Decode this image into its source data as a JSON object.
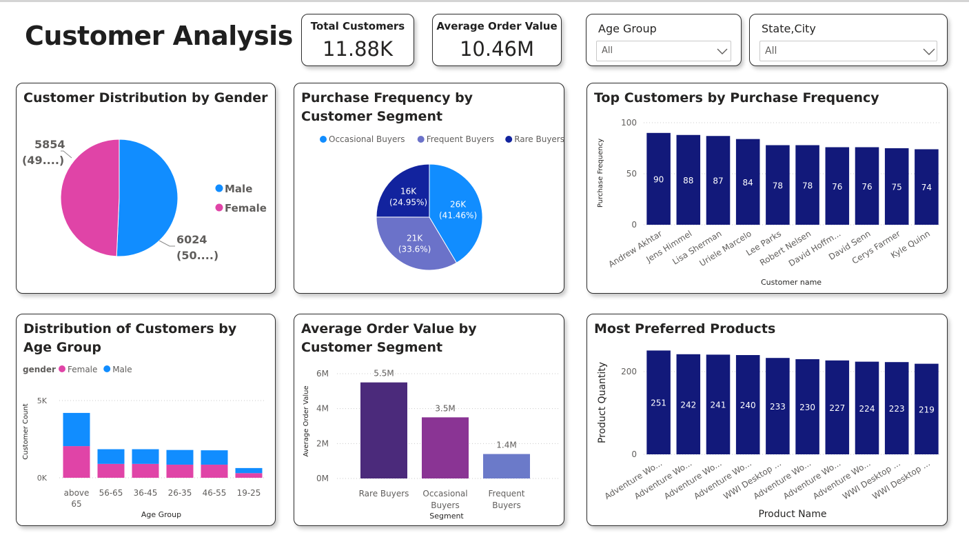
{
  "page": {
    "title": "Customer Analysis"
  },
  "kpis": [
    {
      "label": "Total Customers",
      "value": "11.88K"
    },
    {
      "label": "Average Order Value",
      "value": "10.46M"
    }
  ],
  "slicers": [
    {
      "label": "Age Group",
      "value": "All"
    },
    {
      "label": "State,City",
      "value": "All"
    }
  ],
  "colors": {
    "male": "#118DFF",
    "female": "#E044A7",
    "navy": "#12197A",
    "occasional": "#118DFF",
    "frequent": "#6B72C9",
    "rare": "#12239E",
    "aov_rare": "#4B2A7B",
    "aov_occ": "#8A3494",
    "aov_freq": "#6B7AC9"
  },
  "chart_data": [
    {
      "id": "gender",
      "type": "pie",
      "title": "Customer Distribution by Gender",
      "legend": [
        "Male",
        "Female"
      ],
      "slices": [
        {
          "name": "Male",
          "value": 6024,
          "label": "6024",
          "pct_label": "(50....)"
        },
        {
          "name": "Female",
          "value": 5854,
          "label": "5854",
          "pct_label": "(49....)"
        }
      ]
    },
    {
      "id": "segment_freq",
      "type": "pie",
      "title": "Purchase Frequency by Customer Segment",
      "legend": [
        "Occasional Buyers",
        "Frequent Buyers",
        "Rare Buyers"
      ],
      "slices": [
        {
          "name": "Occasional Buyers",
          "value": 41.46,
          "label": "26K",
          "pct_label": "(41.46%)"
        },
        {
          "name": "Frequent Buyers",
          "value": 33.6,
          "label": "21K",
          "pct_label": "(33.6%)"
        },
        {
          "name": "Rare Buyers",
          "value": 24.95,
          "label": "16K",
          "pct_label": "(24.95%)"
        }
      ]
    },
    {
      "id": "top_customers",
      "type": "bar",
      "title": "Top Customers by Purchase Frequency",
      "xlabel": "Customer name",
      "ylabel": "Purchase Frequency",
      "ylim": [
        0,
        100
      ],
      "yticks": [
        0,
        50,
        100
      ],
      "categories": [
        "Andrew Akhtar",
        "Jens Himmel",
        "Lisa Sherman",
        "Uriele Marcelo",
        "Lee Parks",
        "Robert Nelsen",
        "David Hoffm...",
        "David Senn",
        "Cerys Farmer",
        "Kyle Quinn"
      ],
      "values": [
        90,
        88,
        87,
        84,
        78,
        78,
        76,
        76,
        75,
        74
      ]
    },
    {
      "id": "age_group",
      "type": "bar",
      "stacked": true,
      "title": "Distribution of Customers by Age Group",
      "legend_title": "gender",
      "legend": [
        "Female",
        "Male"
      ],
      "xlabel": "Age Group",
      "ylabel": "Customer Count",
      "ytick_labels": [
        "0K",
        "5K"
      ],
      "ylim": [
        0,
        5000
      ],
      "categories": [
        [
          "above",
          "65"
        ],
        [
          "56-65"
        ],
        [
          "36-45"
        ],
        [
          "26-35"
        ],
        [
          "46-55"
        ],
        [
          "19-25"
        ]
      ],
      "series": [
        {
          "name": "Female",
          "values": [
            2050,
            900,
            900,
            850,
            850,
            300
          ]
        },
        {
          "name": "Male",
          "values": [
            2150,
            950,
            950,
            950,
            930,
            330
          ]
        }
      ]
    },
    {
      "id": "aov_segment",
      "type": "bar",
      "title": "Average Order Value by Customer Segment",
      "xlabel": "Segment",
      "ylabel": "Average Order Value",
      "ylim": [
        0,
        6
      ],
      "ytick_labels": [
        "0M",
        "2M",
        "4M",
        "6M"
      ],
      "categories": [
        [
          "Rare Buyers"
        ],
        [
          "Occasional",
          "Buyers"
        ],
        [
          "Frequent",
          "Buyers"
        ]
      ],
      "values": [
        5.5,
        3.5,
        1.4
      ],
      "value_labels": [
        "5.5M",
        "3.5M",
        "1.4M"
      ]
    },
    {
      "id": "products",
      "type": "bar",
      "title": "Most Preferred Products",
      "xlabel": "Product Name",
      "ylabel": "Product Quantity",
      "ylim": [
        0,
        260
      ],
      "yticks": [
        0,
        200
      ],
      "categories": [
        "Adventure Wo...",
        "Adventure Wo...",
        "Adventure Wo...",
        "Adventure Wo...",
        "WWI Desktop ...",
        "Adventure Wo...",
        "Adventure Wo...",
        "Adventure Wo...",
        "WWI Desktop ...",
        "WWI Desktop ..."
      ],
      "values": [
        251,
        242,
        241,
        240,
        233,
        230,
        227,
        224,
        223,
        219
      ]
    }
  ]
}
